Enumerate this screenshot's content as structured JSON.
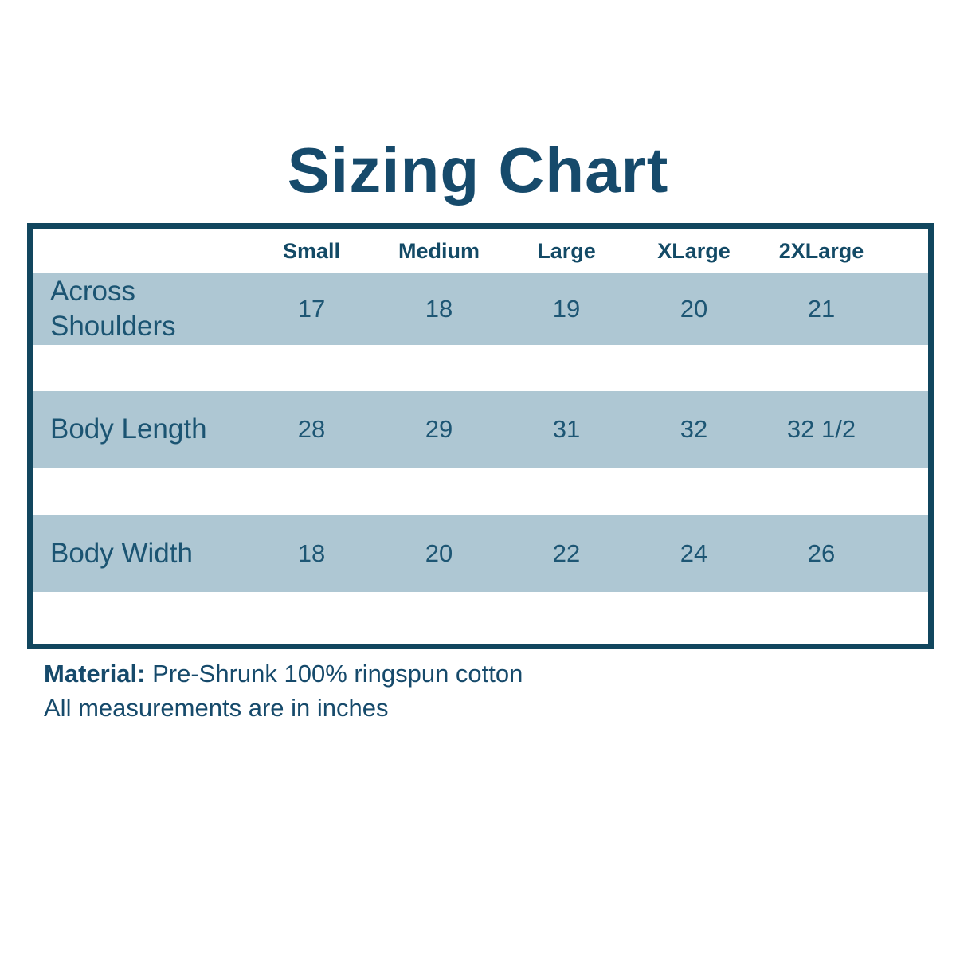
{
  "title": "Sizing Chart",
  "table": {
    "size_headers": [
      "Small",
      "Medium",
      "Large",
      "XLarge",
      "2XLarge"
    ],
    "rows": [
      {
        "label": "Across Shoulders",
        "values": [
          "17",
          "18",
          "19",
          "20",
          "21"
        ]
      },
      {
        "label": "Body Length",
        "values": [
          "28",
          "29",
          "31",
          "32",
          "32 1/2"
        ]
      },
      {
        "label": "Body Width",
        "values": [
          "18",
          "20",
          "22",
          "24",
          "26"
        ]
      }
    ]
  },
  "footer": {
    "material_label": "Material:",
    "material_value": " Pre-Shrunk 100% ringspun cotton",
    "note": "All measurements are in inches"
  },
  "colors": {
    "text_dark_teal": "#164a6b",
    "table_border": "#11465e",
    "row_background": "#aec7d3",
    "page_background": "#ffffff"
  },
  "chart_data": {
    "type": "table",
    "title": "Sizing Chart",
    "columns": [
      "",
      "Small",
      "Medium",
      "Large",
      "XLarge",
      "2XLarge"
    ],
    "rows": [
      [
        "Across Shoulders",
        "17",
        "18",
        "19",
        "20",
        "21"
      ],
      [
        "Body Length",
        "28",
        "29",
        "31",
        "32",
        "32 1/2"
      ],
      [
        "Body Width",
        "18",
        "20",
        "22",
        "24",
        "26"
      ]
    ],
    "notes": [
      "Material: Pre-Shrunk 100% ringspun cotton",
      "All measurements are in inches"
    ],
    "units": "inches"
  }
}
